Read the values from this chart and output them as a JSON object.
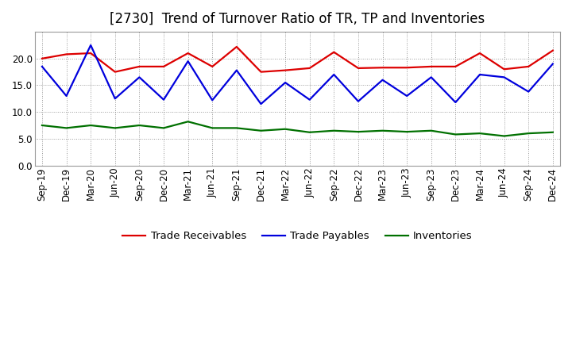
{
  "title": "[2730]  Trend of Turnover Ratio of TR, TP and Inventories",
  "ylim": [
    0.0,
    25.0
  ],
  "yticks": [
    0.0,
    5.0,
    10.0,
    15.0,
    20.0
  ],
  "x_labels": [
    "Sep-19",
    "Dec-19",
    "Mar-20",
    "Jun-20",
    "Sep-20",
    "Dec-20",
    "Mar-21",
    "Jun-21",
    "Sep-21",
    "Dec-21",
    "Mar-22",
    "Jun-22",
    "Sep-22",
    "Dec-22",
    "Mar-23",
    "Jun-23",
    "Sep-23",
    "Dec-23",
    "Mar-24",
    "Jun-24",
    "Sep-24",
    "Dec-24"
  ],
  "trade_receivables": [
    20.0,
    20.8,
    21.0,
    17.5,
    18.5,
    18.5,
    21.0,
    18.5,
    22.2,
    17.5,
    17.8,
    18.2,
    21.2,
    18.2,
    18.3,
    18.3,
    18.5,
    18.5,
    21.0,
    18.0,
    18.5,
    21.5
  ],
  "trade_payables": [
    18.5,
    13.0,
    22.5,
    12.5,
    16.5,
    12.3,
    19.5,
    12.2,
    17.8,
    11.5,
    15.5,
    12.3,
    17.0,
    12.0,
    16.0,
    13.0,
    16.5,
    11.8,
    17.0,
    16.5,
    13.8,
    19.0
  ],
  "inventories": [
    7.5,
    7.0,
    7.5,
    7.0,
    7.5,
    7.0,
    8.2,
    7.0,
    7.0,
    6.5,
    6.8,
    6.2,
    6.5,
    6.3,
    6.5,
    6.3,
    6.5,
    5.8,
    6.0,
    5.5,
    6.0,
    6.2
  ],
  "tr_color": "#dd0000",
  "tp_color": "#0000dd",
  "inv_color": "#007000",
  "legend_labels": [
    "Trade Receivables",
    "Trade Payables",
    "Inventories"
  ],
  "bg_color": "#ffffff",
  "grid_color": "#999999",
  "title_fontsize": 12,
  "tick_fontsize": 8.5,
  "legend_fontsize": 9.5,
  "linewidth": 1.6
}
